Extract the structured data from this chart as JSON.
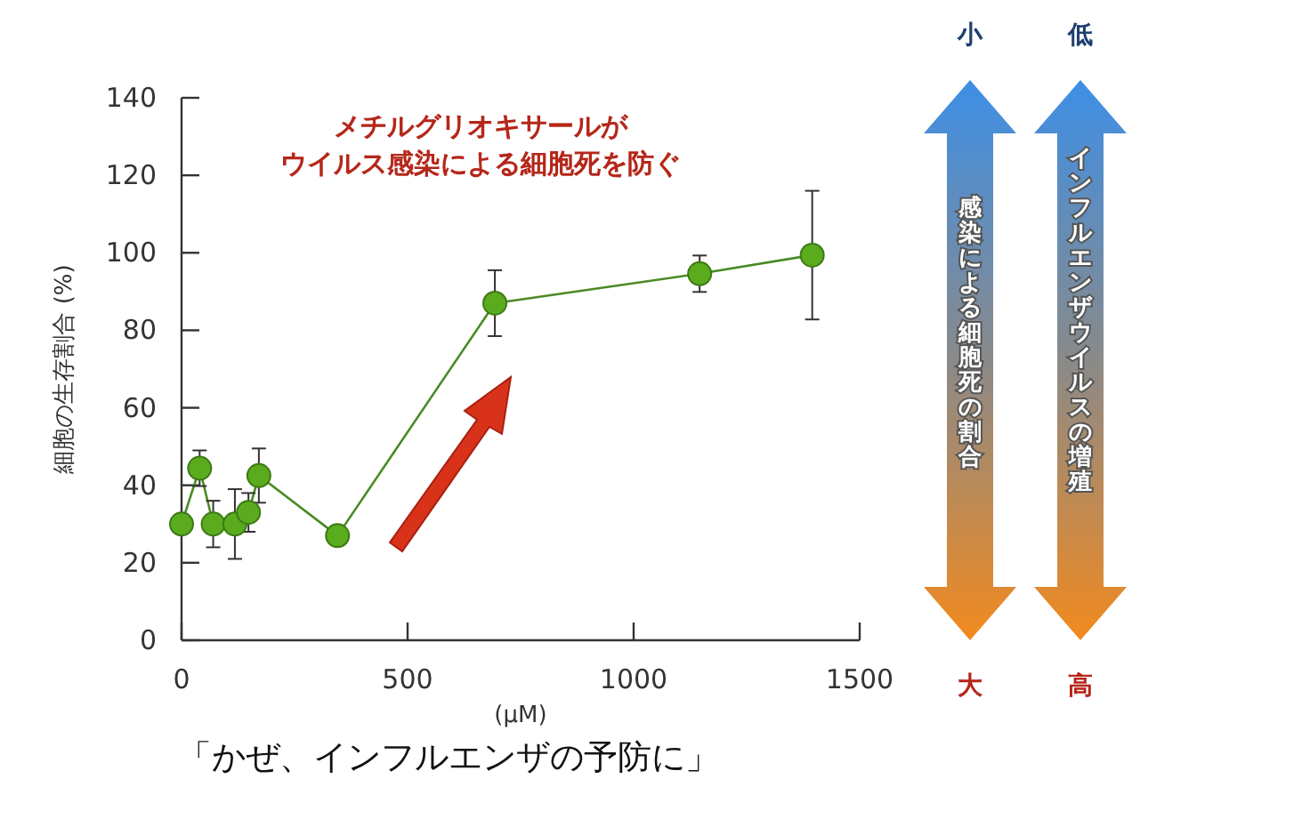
{
  "chart_data": {
    "type": "line",
    "ylabel": "細胞の生存割合 (%)",
    "xlabel": "(μM)",
    "x": [
      0,
      40,
      70,
      118,
      148,
      171,
      345,
      693,
      1146,
      1395
    ],
    "series": [
      {
        "color": "#5aab1e",
        "values": [
          30,
          44.4,
          30,
          30,
          33,
          42.5,
          27,
          87,
          94.6,
          99.4
        ],
        "errors": [
          null,
          4.6,
          6,
          9,
          5,
          7,
          null,
          8.5,
          4.7,
          16.6
        ]
      }
    ],
    "xlim": [
      0,
      1500
    ],
    "ylim": [
      0,
      140
    ],
    "xticks": [
      0,
      500,
      1000,
      1500
    ],
    "yticks": [
      0,
      20,
      40,
      60,
      80,
      100,
      120,
      140
    ],
    "grid": false,
    "marker": "circle",
    "line_style": "solid",
    "annotations": [
      "メチルグリオキサールが",
      "ウイルス感染による細胞死を防ぐ",
      "小",
      "大",
      "感染による細胞死の割合",
      "低",
      "高",
      "インフルエンザウイルスの増殖",
      "「かぜ、インフルエンザの予防に」"
    ]
  }
}
